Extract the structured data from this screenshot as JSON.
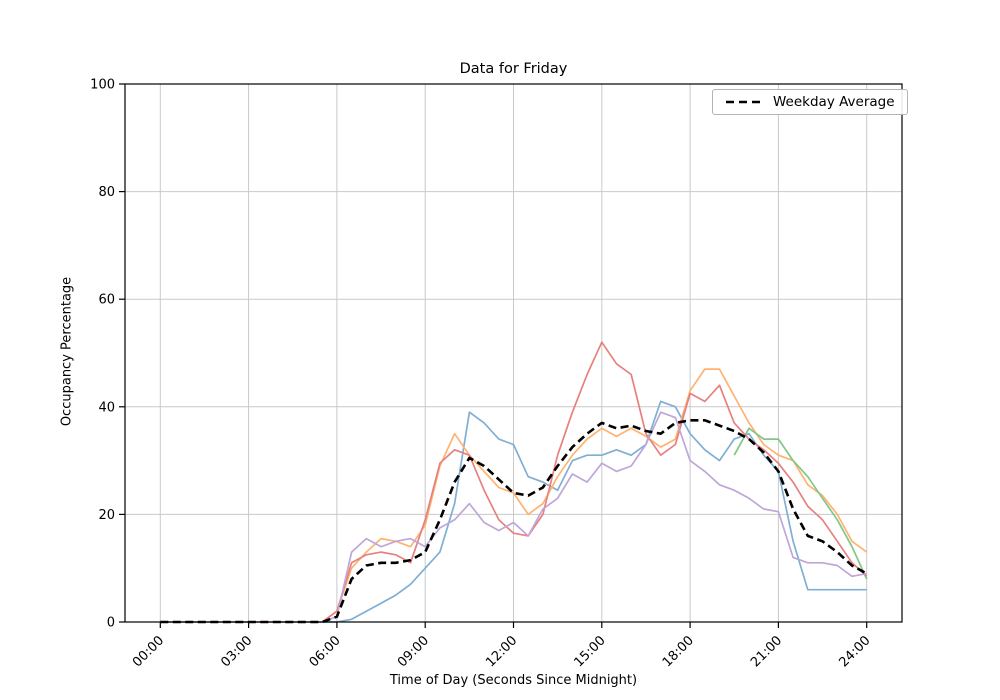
{
  "chart_data": {
    "type": "line",
    "title": "Data for Friday",
    "xlabel": "Time of Day (Seconds Since Midnight)",
    "ylabel": "Occupancy Percentage",
    "ylim": [
      0,
      100
    ],
    "xlim_hours": [
      0,
      24
    ],
    "grid": true,
    "legend_position": "upper right",
    "ytick_values": [
      0,
      20,
      40,
      60,
      80,
      100
    ],
    "xtick_hours": [
      0,
      3,
      6,
      9,
      12,
      15,
      18,
      21,
      24
    ],
    "xtick_labels": [
      "00:00",
      "03:00",
      "06:00",
      "09:00",
      "12:00",
      "15:00",
      "18:00",
      "21:00",
      "24:00"
    ],
    "x_hours": [
      0,
      0.5,
      1,
      1.5,
      2,
      2.5,
      3,
      3.5,
      4,
      4.5,
      5,
      5.5,
      6,
      6.5,
      7,
      7.5,
      8,
      8.5,
      9,
      9.5,
      10,
      10.5,
      11,
      11.5,
      12,
      12.5,
      13,
      13.5,
      14,
      14.5,
      15,
      15.5,
      16,
      16.5,
      17,
      17.5,
      18,
      18.5,
      19,
      19.5,
      20,
      20.5,
      21,
      21.5,
      22,
      22.5,
      23,
      23.5,
      24
    ],
    "series": [
      {
        "name": "friday-line-blue",
        "color": "#7fafd4",
        "dash": false,
        "values": [
          0,
          0,
          0,
          0,
          0,
          0,
          0,
          0,
          0,
          0,
          0,
          0,
          0,
          0.5,
          2,
          3.5,
          5,
          7,
          10,
          13,
          22,
          39,
          37,
          34,
          33,
          27,
          26,
          24.5,
          30,
          31,
          31,
          32,
          31,
          33,
          41,
          40,
          35,
          32,
          30,
          34,
          35,
          31,
          28,
          15,
          6,
          6,
          6,
          6,
          6
        ]
      },
      {
        "name": "friday-line-orange",
        "color": "#ffb270",
        "dash": false,
        "values": [
          0,
          0,
          0,
          0,
          0,
          0,
          0,
          0,
          0,
          0,
          0,
          0,
          2,
          10,
          13,
          15.5,
          15,
          14,
          18,
          29,
          35,
          31,
          28,
          25,
          24,
          20,
          22,
          27,
          31,
          34,
          36,
          34.5,
          36,
          34.5,
          32.5,
          34,
          43,
          47,
          47,
          42,
          37,
          33,
          31,
          30,
          25.5,
          23.5,
          20,
          15,
          13
        ]
      },
      {
        "name": "friday-line-green",
        "color": "#82c785",
        "dash": false,
        "values": [
          null,
          null,
          null,
          null,
          null,
          null,
          null,
          null,
          null,
          null,
          null,
          null,
          null,
          null,
          null,
          null,
          null,
          null,
          null,
          null,
          null,
          null,
          null,
          null,
          null,
          null,
          null,
          null,
          null,
          null,
          null,
          null,
          null,
          null,
          null,
          null,
          null,
          null,
          null,
          31,
          36,
          34,
          34,
          30,
          27,
          23,
          19,
          14,
          8
        ]
      },
      {
        "name": "friday-line-red",
        "color": "#e8807e",
        "dash": false,
        "values": [
          0,
          0,
          0,
          0,
          0,
          0,
          0,
          0,
          0,
          0,
          0,
          0,
          2,
          11,
          12.5,
          13,
          12.5,
          11,
          19,
          29.5,
          32,
          31,
          24.5,
          19,
          16.5,
          16,
          20,
          31,
          39,
          46,
          52,
          48,
          46,
          35,
          31,
          33,
          42.5,
          41,
          44,
          37,
          34,
          32,
          29.5,
          26,
          21.5,
          19,
          15,
          11,
          8.5
        ]
      },
      {
        "name": "friday-line-purple",
        "color": "#bfa6d9",
        "dash": false,
        "values": [
          0,
          0,
          0,
          0,
          0,
          0,
          0,
          0,
          0,
          0,
          0,
          0,
          1,
          13,
          15.5,
          14,
          15,
          15.5,
          14,
          17.5,
          19,
          22,
          18.5,
          17,
          18.5,
          16,
          21,
          23,
          27.5,
          26,
          29.5,
          28,
          29,
          33,
          39,
          38,
          30,
          28,
          25.5,
          24.5,
          23,
          21,
          20.5,
          12,
          11,
          11,
          10.5,
          8.5,
          9
        ]
      },
      {
        "name": "Weekday Average",
        "color": "#000000",
        "dash": true,
        "values": [
          0,
          0,
          0,
          0,
          0,
          0,
          0,
          0,
          0,
          0,
          0,
          0,
          1,
          8,
          10.5,
          11,
          11,
          11.5,
          13,
          19,
          26,
          30.5,
          29,
          26.5,
          24,
          23.5,
          25,
          29,
          32.5,
          35,
          37,
          36,
          36.5,
          35.5,
          35,
          37,
          37.5,
          37.5,
          36.5,
          35.5,
          34,
          31.5,
          28,
          21,
          16,
          15,
          13,
          10.5,
          9
        ]
      }
    ]
  }
}
